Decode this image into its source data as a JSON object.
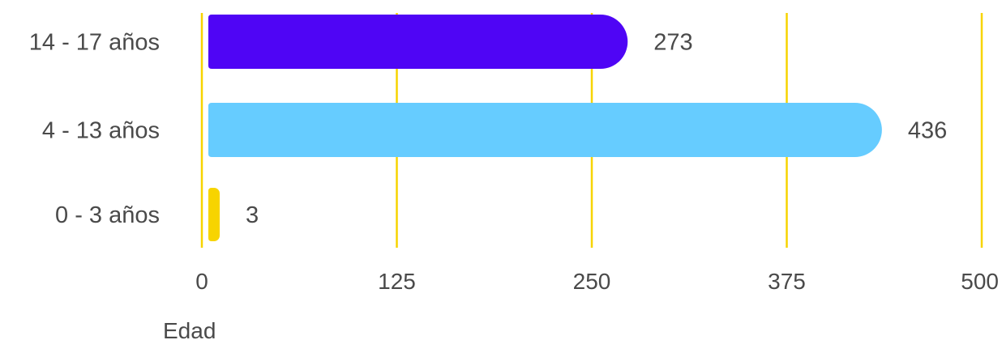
{
  "chart_data": {
    "type": "bar",
    "orientation": "horizontal",
    "categories": [
      "14 - 17 años",
      "4 - 13 años",
      "0 - 3 años"
    ],
    "values": [
      273,
      436,
      3
    ],
    "colors": [
      "#4f05f5",
      "#66ccff",
      "#f7d400"
    ],
    "value_labels": [
      "273",
      "436",
      "3"
    ],
    "xlim": [
      0,
      500
    ],
    "xticks": [
      0,
      125,
      250,
      375,
      500
    ],
    "tick_labels": [
      "0",
      "125",
      "250",
      "375",
      "500"
    ],
    "grid": true,
    "grid_color": "#f7d400",
    "legend": {
      "label": "Edad",
      "placement": "bottom-left"
    },
    "title": "",
    "xlabel": "",
    "ylabel": ""
  }
}
